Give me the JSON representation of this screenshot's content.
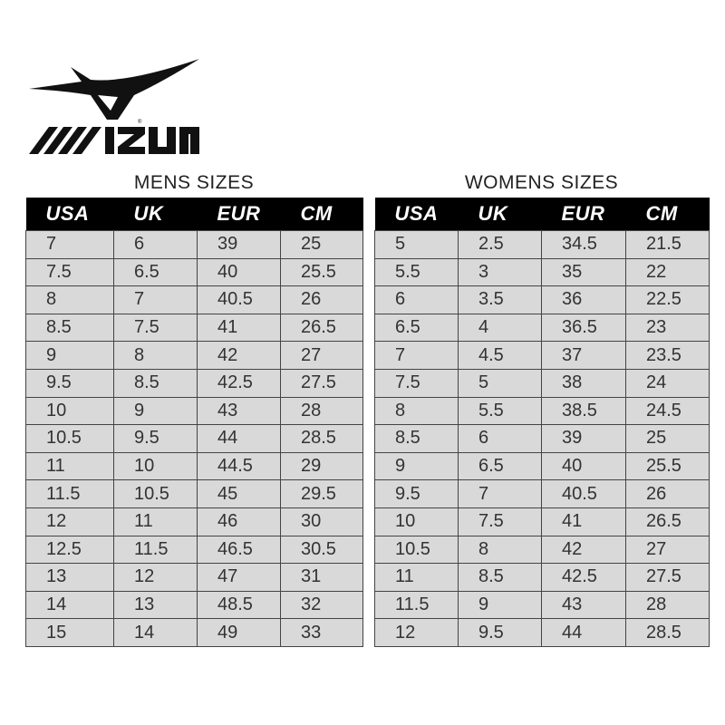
{
  "brand": {
    "name": "MIZUNO",
    "logo_icon": "mizuno-runbird-logo"
  },
  "mens": {
    "title": "MENS SIZES",
    "columns": [
      "USA",
      "UK",
      "EUR",
      "CM"
    ],
    "rows": [
      [
        "7",
        "6",
        "39",
        "25"
      ],
      [
        "7.5",
        "6.5",
        "40",
        "25.5"
      ],
      [
        "8",
        "7",
        "40.5",
        "26"
      ],
      [
        "8.5",
        "7.5",
        "41",
        "26.5"
      ],
      [
        "9",
        "8",
        "42",
        "27"
      ],
      [
        "9.5",
        "8.5",
        "42.5",
        "27.5"
      ],
      [
        "10",
        "9",
        "43",
        "28"
      ],
      [
        "10.5",
        "9.5",
        "44",
        "28.5"
      ],
      [
        "11",
        "10",
        "44.5",
        "29"
      ],
      [
        "11.5",
        "10.5",
        "45",
        "29.5"
      ],
      [
        "12",
        "11",
        "46",
        "30"
      ],
      [
        "12.5",
        "11.5",
        "46.5",
        "30.5"
      ],
      [
        "13",
        "12",
        "47",
        "31"
      ],
      [
        "14",
        "13",
        "48.5",
        "32"
      ],
      [
        "15",
        "14",
        "49",
        "33"
      ]
    ]
  },
  "womens": {
    "title": "WOMENS SIZES",
    "columns": [
      "USA",
      "UK",
      "EUR",
      "CM"
    ],
    "rows": [
      [
        "5",
        "2.5",
        "34.5",
        "21.5"
      ],
      [
        "5.5",
        "3",
        "35",
        "22"
      ],
      [
        "6",
        "3.5",
        "36",
        "22.5"
      ],
      [
        "6.5",
        "4",
        "36.5",
        "23"
      ],
      [
        "7",
        "4.5",
        "37",
        "23.5"
      ],
      [
        "7.5",
        "5",
        "38",
        "24"
      ],
      [
        "8",
        "5.5",
        "38.5",
        "24.5"
      ],
      [
        "8.5",
        "6",
        "39",
        "25"
      ],
      [
        "9",
        "6.5",
        "40",
        "25.5"
      ],
      [
        "9.5",
        "7",
        "40.5",
        "26"
      ],
      [
        "10",
        "7.5",
        "41",
        "26.5"
      ],
      [
        "10.5",
        "8",
        "42",
        "27"
      ],
      [
        "11",
        "8.5",
        "42.5",
        "27.5"
      ],
      [
        "11.5",
        "9",
        "43",
        "28"
      ],
      [
        "12",
        "9.5",
        "44",
        "28.5"
      ]
    ]
  }
}
